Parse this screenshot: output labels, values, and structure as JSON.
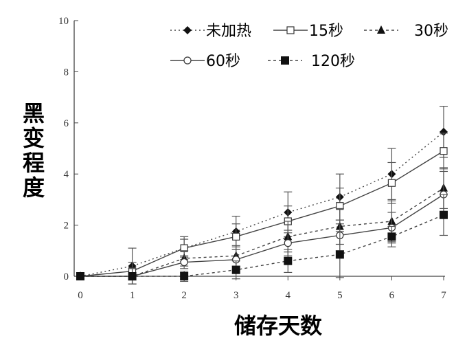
{
  "chart_data": {
    "type": "line",
    "xlabel": "储存天数",
    "ylabel": "黑变程度",
    "xlim": [
      0,
      7
    ],
    "ylim": [
      0,
      10
    ],
    "x": [
      0,
      1,
      2,
      3,
      4,
      5,
      6,
      7
    ],
    "xticks": [
      "0",
      "1",
      "2",
      "3",
      "4",
      "5",
      "6",
      "7"
    ],
    "yticks": [
      "0",
      "2",
      "4",
      "6",
      "8",
      "10"
    ],
    "grid": false,
    "legend_position": "top",
    "series": [
      {
        "name": "未加热",
        "marker": "diamond-filled",
        "line": "dotted",
        "values": [
          0,
          0.4,
          1.1,
          1.75,
          2.5,
          3.1,
          4.0,
          5.65
        ],
        "error": [
          0,
          0.7,
          0.45,
          0.6,
          0.8,
          0.9,
          1.0,
          1.0
        ]
      },
      {
        "name": "15秒",
        "marker": "square-open",
        "line": "solid",
        "values": [
          0,
          0.2,
          1.1,
          1.55,
          2.15,
          2.75,
          3.65,
          4.9
        ],
        "error": [
          0,
          0.35,
          0.35,
          0.5,
          0.6,
          0.7,
          0.8,
          0.7
        ]
      },
      {
        "name": "30秒",
        "marker": "triangle-filled",
        "line": "dashed",
        "values": [
          0,
          0,
          0.7,
          0.8,
          1.55,
          1.95,
          2.15,
          3.45
        ],
        "error": [
          0,
          0.3,
          0.3,
          0.4,
          0.6,
          0.7,
          0.8,
          0.8
        ]
      },
      {
        "name": "60秒",
        "marker": "circle-open",
        "line": "solid",
        "values": [
          0,
          0,
          0.55,
          0.65,
          1.3,
          1.6,
          1.9,
          3.2
        ],
        "error": [
          0,
          0.3,
          0.25,
          0.4,
          0.5,
          0.6,
          0.6,
          0.9
        ]
      },
      {
        "name": "120秒",
        "marker": "square-filled",
        "line": "dashed",
        "values": [
          0,
          0,
          0,
          0.25,
          0.6,
          0.85,
          1.55,
          2.4
        ],
        "error": [
          0,
          0.3,
          0.2,
          0.35,
          0.45,
          0.9,
          0.4,
          0.8
        ]
      }
    ]
  }
}
